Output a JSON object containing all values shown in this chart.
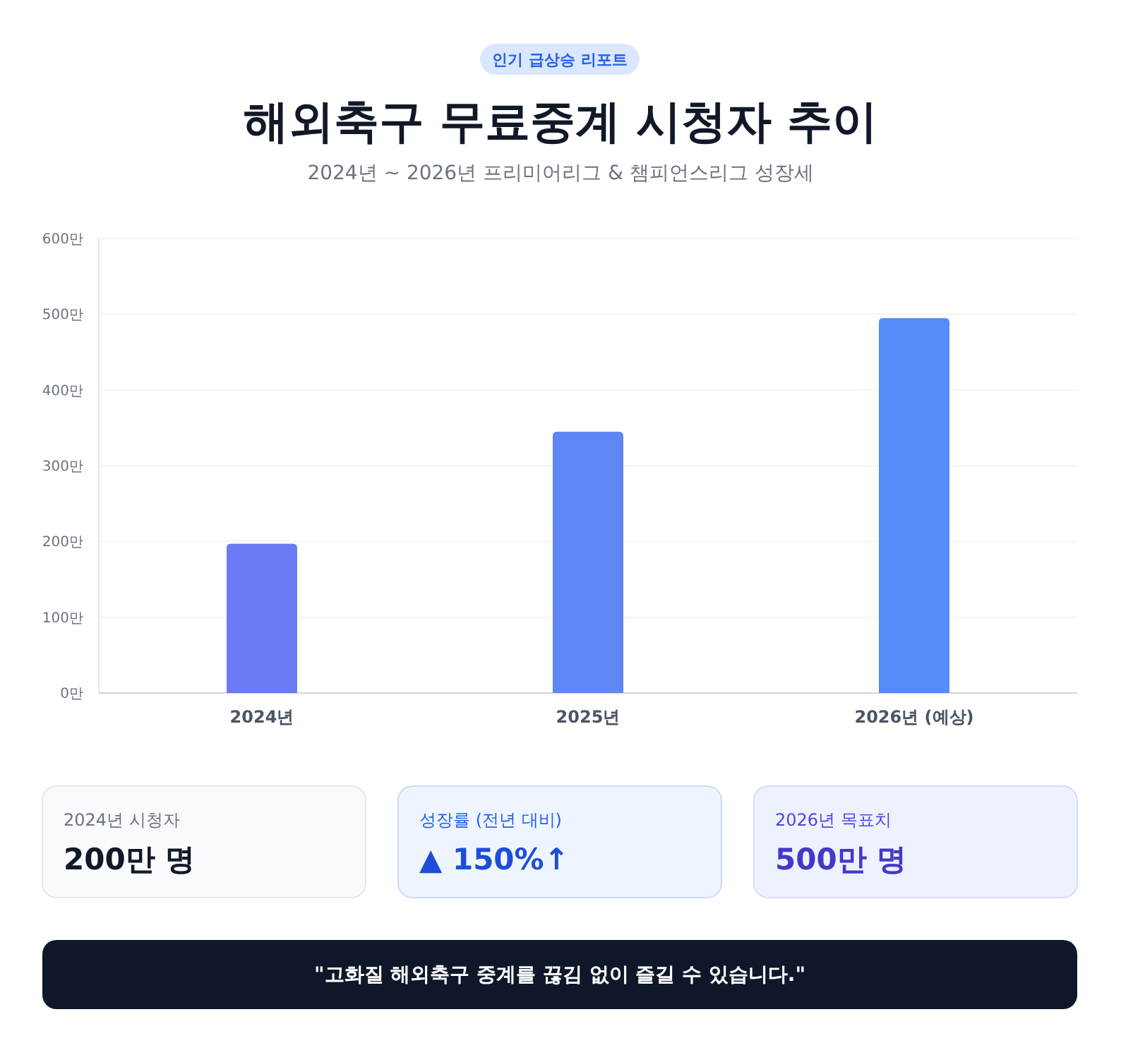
{
  "chart_data": {
    "type": "bar",
    "title": "해외축구 무료중계 시청자 추이",
    "subtitle": "2024년 ~ 2026년 프리미어리그 & 챔피언스리그 성장세",
    "categories": [
      "2024년",
      "2025년",
      "2026년 (예상)"
    ],
    "values": [
      197,
      345,
      495
    ],
    "colors": [
      "#6b7bf3",
      "#5f86f5",
      "#568cf7"
    ],
    "ylim": [
      0,
      600
    ],
    "yticks": [
      {
        "value": 0,
        "label": "0만"
      },
      {
        "value": 100,
        "label": "100만"
      },
      {
        "value": 200,
        "label": "200만"
      },
      {
        "value": 300,
        "label": "300만"
      },
      {
        "value": 400,
        "label": "400만"
      },
      {
        "value": 500,
        "label": "500만"
      },
      {
        "value": 600,
        "label": "600만"
      }
    ],
    "grid": "y",
    "annotations": [
      "인기 급상승 리포트",
      "2024년 시청자",
      "200만 명",
      "성장률 (전년 대비)",
      "▲ 150%↑",
      "2026년 목표치",
      "500만 명",
      "\"고화질 해외축구 중계를 끊김 없이 즐길 수 있습니다.\""
    ]
  }
}
